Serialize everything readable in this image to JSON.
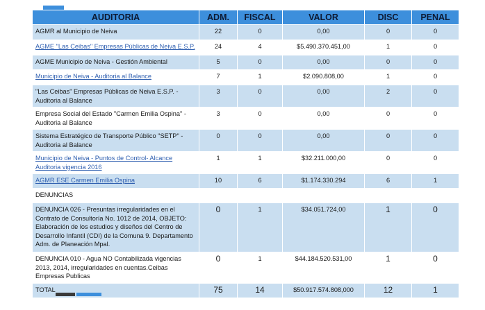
{
  "headers": [
    "AUDITORIA",
    "ADM.",
    "FISCAL",
    "VALOR",
    "DISC",
    "PENAL"
  ],
  "rows": [
    {
      "auditoria": "AGMR al Municipio de Neiva",
      "adm": "22",
      "fiscal": "0",
      "valor": "0,00",
      "disc": "0",
      "penal": "0",
      "link": false
    },
    {
      "auditoria": "AGME \"Las Ceibas\" Empresas Públicas de Neiva E.S.P.",
      "adm": "24",
      "fiscal": "4",
      "valor": "$5.490.370.451,00",
      "disc": "1",
      "penal": "0",
      "link": true
    },
    {
      "auditoria": "AGME Municipio de Neiva - Gestión Ambiental",
      "adm": "5",
      "fiscal": "0",
      "valor": "0,00",
      "disc": "0",
      "penal": "0",
      "link": false
    },
    {
      "auditoria": "Municipio de Neiva - Auditoria al Balance",
      "adm": "7",
      "fiscal": "1",
      "valor": "$2.090.808,00",
      "disc": "1",
      "penal": "0",
      "link": true
    },
    {
      "auditoria": "\"Las Ceibas\" Empresas Públicas de Neiva E.S.P. - Auditoria al Balance",
      "adm": "3",
      "fiscal": "0",
      "valor": "0,00",
      "disc": "2",
      "penal": "0",
      "link": false
    },
    {
      "auditoria": "Empresa Social del Estado \"Carmen Emilia Ospina\" - Auditoria al Balance",
      "adm": "3",
      "fiscal": "0",
      "valor": "0,00",
      "disc": "0",
      "penal": "0",
      "link": false
    },
    {
      "auditoria": "Sistema Estratégico de Transporte Público \"SETP\" - Auditoria al Balance",
      "adm": "0",
      "fiscal": "0",
      "valor": "0,00",
      "disc": "0",
      "penal": "0",
      "link": false
    },
    {
      "auditoria": "Municipio de Neiva - Puntos de Control- Alcance Auditoria vigencia 2016",
      "adm": "1",
      "fiscal": "1",
      "valor": "$32.211.000,00",
      "disc": "0",
      "penal": "0",
      "link": true
    },
    {
      "auditoria": "AGMR ESE Carmen Emilia Ospina",
      "adm": "10",
      "fiscal": "6",
      "valor": "$1.174.330.294",
      "disc": "6",
      "penal": "1",
      "link": true
    },
    {
      "auditoria": "DENUNCIAS",
      "adm": "",
      "fiscal": "",
      "valor": "",
      "disc": "",
      "penal": "",
      "link": false
    },
    {
      "auditoria": "DENUNCIA 026 - Presuntas irregularidades en el Contrato de Consultoría No. 1012 de 2014, OBJETO: Elaboración de los estudios y diseños del Centro de Desarrollo Infantil (CDI) de la Comuna 9. Departamento Adm. de Planeación Mpal.",
      "adm": "0",
      "fiscal": "1",
      "valor": "$34.051.724,00",
      "disc": "1",
      "penal": "0",
      "link": false
    },
    {
      "auditoria": "DENUNCIA 010 - Agua NO Contabilizada vigencias 2013, 2014, irregularidades en cuentas.Ceibas Empresas Publicas",
      "adm": "0",
      "fiscal": "1",
      "valor": "$44.184.520.531,00",
      "disc": "1",
      "penal": "0",
      "link": false
    },
    {
      "auditoria": "TOTAL",
      "adm": "75",
      "fiscal": "14",
      "valor": "$50.917.574.808,000",
      "disc": "12",
      "penal": "1",
      "link": false
    }
  ]
}
